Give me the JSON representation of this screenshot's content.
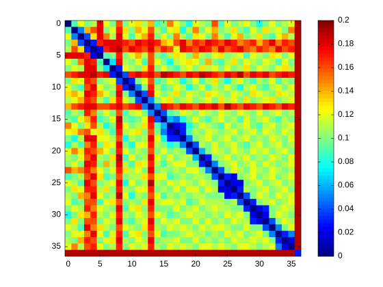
{
  "chart_data": {
    "type": "heatmap",
    "xlim": [
      -0.5,
      36.5
    ],
    "ylim": [
      36.5,
      -0.5
    ],
    "xticks": [
      0,
      5,
      10,
      15,
      20,
      25,
      30,
      35
    ],
    "yticks": [
      0,
      5,
      10,
      15,
      20,
      25,
      30,
      35
    ],
    "clim": [
      0,
      0.2
    ],
    "cticks": [
      0,
      0.02,
      0.04,
      0.06,
      0.08,
      0.1,
      0.12,
      0.14,
      0.16,
      0.18,
      0.2
    ],
    "colormap": "jet",
    "z": [
      [
        0,
        0.09,
        0.12,
        0.1,
        0.11,
        0.18,
        0.12,
        0.1,
        0.16,
        0.1,
        0.12,
        0.13,
        0.11,
        0.14,
        0.09,
        0.1,
        0.15,
        0.12,
        0.1,
        0.08,
        0.12,
        0.11,
        0.1,
        0.16,
        0.09,
        0.12,
        0.1,
        0.11,
        0.12,
        0.1,
        0.08,
        0.1,
        0.12,
        0.1,
        0.11,
        0.12,
        0.19
      ],
      [
        0.09,
        0,
        0.05,
        0.14,
        0.16,
        0.18,
        0.1,
        0.12,
        0.17,
        0.13,
        0.1,
        0.14,
        0.12,
        0.16,
        0.11,
        0.09,
        0.12,
        0.13,
        0.08,
        0.11,
        0.15,
        0.1,
        0.12,
        0.14,
        0.1,
        0.11,
        0.13,
        0.1,
        0.09,
        0.12,
        0.1,
        0.13,
        0.11,
        0.12,
        0.1,
        0.15,
        0.19
      ],
      [
        0.12,
        0.05,
        0,
        0.04,
        0.13,
        0.18,
        0.15,
        0.11,
        0.18,
        0.12,
        0.09,
        0.12,
        0.14,
        0.17,
        0.1,
        0.12,
        0.1,
        0.15,
        0.11,
        0.09,
        0.13,
        0.12,
        0.1,
        0.15,
        0.11,
        0.09,
        0.12,
        0.14,
        0.1,
        0.11,
        0.13,
        0.1,
        0.09,
        0.12,
        0.14,
        0.11,
        0.19
      ],
      [
        0.1,
        0.14,
        0.04,
        0,
        0.03,
        0.17,
        0.18,
        0.18,
        0.18,
        0.17,
        0.16,
        0.18,
        0.17,
        0.18,
        0.17,
        0.14,
        0.13,
        0.16,
        0.18,
        0.15,
        0.17,
        0.16,
        0.18,
        0.17,
        0.16,
        0.18,
        0.17,
        0.15,
        0.16,
        0.17,
        0.14,
        0.16,
        0.18,
        0.15,
        0.17,
        0.16,
        0.19
      ],
      [
        0.11,
        0.16,
        0.13,
        0.03,
        0,
        0.02,
        0.17,
        0.18,
        0.19,
        0.16,
        0.18,
        0.17,
        0.16,
        0.18,
        0.15,
        0.17,
        0.16,
        0.12,
        0.18,
        0.17,
        0.16,
        0.18,
        0.17,
        0.15,
        0.18,
        0.16,
        0.17,
        0.18,
        0.16,
        0.15,
        0.17,
        0.16,
        0.15,
        0.18,
        0.16,
        0.17,
        0.19
      ],
      [
        0.18,
        0.18,
        0.18,
        0.17,
        0.02,
        0,
        0.09,
        0.1,
        0.17,
        0.1,
        0.12,
        0.14,
        0.11,
        0.16,
        0.1,
        0.09,
        0.11,
        0.13,
        0.12,
        0.1,
        0.14,
        0.11,
        0.1,
        0.12,
        0.13,
        0.1,
        0.11,
        0.12,
        0.09,
        0.12,
        0.11,
        0.1,
        0.13,
        0.12,
        0.1,
        0.12,
        0.19
      ],
      [
        0.12,
        0.1,
        0.15,
        0.18,
        0.17,
        0.09,
        0,
        0.07,
        0.18,
        0.11,
        0.1,
        0.12,
        0.09,
        0.16,
        0.12,
        0.1,
        0.08,
        0.11,
        0.12,
        0.13,
        0.12,
        0.1,
        0.14,
        0.1,
        0.09,
        0.11,
        0.13,
        0.1,
        0.12,
        0.11,
        0.1,
        0.12,
        0.11,
        0.09,
        0.12,
        0.1,
        0.19
      ],
      [
        0.1,
        0.12,
        0.11,
        0.18,
        0.18,
        0.1,
        0.07,
        0,
        0.03,
        0.12,
        0.11,
        0.1,
        0.13,
        0.17,
        0.1,
        0.12,
        0.1,
        0.09,
        0.11,
        0.12,
        0.1,
        0.13,
        0.11,
        0.12,
        0.1,
        0.12,
        0.1,
        0.11,
        0.13,
        0.1,
        0.12,
        0.11,
        0.1,
        0.12,
        0.13,
        0.11,
        0.19
      ],
      [
        0.16,
        0.17,
        0.18,
        0.18,
        0.19,
        0.17,
        0.18,
        0.03,
        0,
        0.04,
        0.17,
        0.18,
        0.17,
        0.18,
        0.16,
        0.19,
        0.18,
        0.17,
        0.16,
        0.18,
        0.17,
        0.19,
        0.18,
        0.17,
        0.16,
        0.18,
        0.17,
        0.19,
        0.16,
        0.18,
        0.17,
        0.18,
        0.16,
        0.17,
        0.18,
        0.17,
        0.19
      ],
      [
        0.1,
        0.13,
        0.12,
        0.17,
        0.16,
        0.1,
        0.11,
        0.12,
        0.04,
        0,
        0.03,
        0.1,
        0.12,
        0.16,
        0.09,
        0.1,
        0.12,
        0.11,
        0.08,
        0.1,
        0.12,
        0.09,
        0.11,
        0.13,
        0.1,
        0.08,
        0.11,
        0.12,
        0.1,
        0.09,
        0.11,
        0.1,
        0.12,
        0.09,
        0.11,
        0.1,
        0.19
      ],
      [
        0.12,
        0.1,
        0.09,
        0.16,
        0.18,
        0.12,
        0.1,
        0.11,
        0.17,
        0.03,
        0,
        0.05,
        0.1,
        0.17,
        0.11,
        0.09,
        0.1,
        0.12,
        0.11,
        0.08,
        0.1,
        0.12,
        0.09,
        0.11,
        0.1,
        0.12,
        0.1,
        0.08,
        0.11,
        0.12,
        0.1,
        0.09,
        0.11,
        0.12,
        0.1,
        0.12,
        0.19
      ],
      [
        0.13,
        0.14,
        0.12,
        0.18,
        0.17,
        0.14,
        0.12,
        0.1,
        0.18,
        0.1,
        0.05,
        0,
        0.04,
        0.18,
        0.12,
        0.1,
        0.11,
        0.13,
        0.1,
        0.12,
        0.11,
        0.1,
        0.13,
        0.12,
        0.11,
        0.1,
        0.12,
        0.11,
        0.1,
        0.13,
        0.12,
        0.11,
        0.1,
        0.13,
        0.12,
        0.11,
        0.19
      ],
      [
        0.11,
        0.12,
        0.14,
        0.17,
        0.16,
        0.11,
        0.09,
        0.13,
        0.17,
        0.12,
        0.1,
        0.04,
        0,
        0.05,
        0.1,
        0.12,
        0.13,
        0.1,
        0.11,
        0.12,
        0.1,
        0.11,
        0.12,
        0.1,
        0.13,
        0.11,
        0.12,
        0.1,
        0.13,
        0.1,
        0.11,
        0.12,
        0.13,
        0.1,
        0.11,
        0.12,
        0.19
      ],
      [
        0.14,
        0.16,
        0.17,
        0.18,
        0.18,
        0.16,
        0.16,
        0.17,
        0.18,
        0.16,
        0.17,
        0.18,
        0.05,
        0,
        0.05,
        0.18,
        0.17,
        0.16,
        0.18,
        0.17,
        0.16,
        0.18,
        0.17,
        0.18,
        0.16,
        0.19,
        0.17,
        0.16,
        0.18,
        0.17,
        0.16,
        0.18,
        0.17,
        0.16,
        0.18,
        0.17,
        0.19
      ],
      [
        0.09,
        0.11,
        0.1,
        0.17,
        0.15,
        0.1,
        0.12,
        0.1,
        0.16,
        0.09,
        0.11,
        0.12,
        0.1,
        0.05,
        0,
        0.04,
        0.09,
        0.1,
        0.12,
        0.11,
        0.1,
        0.12,
        0.11,
        0.1,
        0.12,
        0.11,
        0.1,
        0.12,
        0.11,
        0.1,
        0.12,
        0.1,
        0.11,
        0.12,
        0.1,
        0.11,
        0.19
      ],
      [
        0.1,
        0.09,
        0.12,
        0.14,
        0.17,
        0.09,
        0.1,
        0.12,
        0.19,
        0.1,
        0.09,
        0.1,
        0.12,
        0.18,
        0.04,
        0,
        0.06,
        0.05,
        0.08,
        0.1,
        0.12,
        0.1,
        0.09,
        0.11,
        0.12,
        0.1,
        0.11,
        0.09,
        0.12,
        0.1,
        0.11,
        0.12,
        0.1,
        0.09,
        0.11,
        0.1,
        0.19
      ],
      [
        0.15,
        0.12,
        0.1,
        0.13,
        0.16,
        0.11,
        0.08,
        0.1,
        0.18,
        0.12,
        0.1,
        0.11,
        0.13,
        0.17,
        0.09,
        0.06,
        0,
        0.02,
        0.03,
        0.08,
        0.1,
        0.12,
        0.11,
        0.1,
        0.09,
        0.12,
        0.1,
        0.11,
        0.12,
        0.1,
        0.09,
        0.11,
        0.12,
        0.1,
        0.11,
        0.12,
        0.19
      ],
      [
        0.12,
        0.13,
        0.15,
        0.16,
        0.12,
        0.13,
        0.11,
        0.09,
        0.17,
        0.11,
        0.12,
        0.13,
        0.1,
        0.16,
        0.1,
        0.05,
        0.02,
        0,
        0.03,
        0.09,
        0.11,
        0.1,
        0.12,
        0.11,
        0.1,
        0.11,
        0.12,
        0.1,
        0.11,
        0.12,
        0.1,
        0.12,
        0.11,
        0.1,
        0.12,
        0.11,
        0.19
      ],
      [
        0.1,
        0.08,
        0.11,
        0.18,
        0.18,
        0.12,
        0.12,
        0.11,
        0.16,
        0.08,
        0.11,
        0.1,
        0.11,
        0.18,
        0.12,
        0.08,
        0.03,
        0.03,
        0,
        0.05,
        0.1,
        0.11,
        0.12,
        0.1,
        0.11,
        0.12,
        0.1,
        0.11,
        0.12,
        0.1,
        0.11,
        0.1,
        0.12,
        0.11,
        0.1,
        0.12,
        0.19
      ],
      [
        0.08,
        0.11,
        0.09,
        0.15,
        0.17,
        0.1,
        0.13,
        0.12,
        0.18,
        0.1,
        0.08,
        0.12,
        0.12,
        0.17,
        0.11,
        0.1,
        0.08,
        0.09,
        0.05,
        0,
        0.04,
        0.11,
        0.1,
        0.12,
        0.1,
        0.11,
        0.12,
        0.1,
        0.09,
        0.11,
        0.12,
        0.1,
        0.11,
        0.12,
        0.1,
        0.11,
        0.19
      ],
      [
        0.12,
        0.15,
        0.13,
        0.17,
        0.16,
        0.14,
        0.12,
        0.1,
        0.17,
        0.12,
        0.1,
        0.11,
        0.1,
        0.16,
        0.1,
        0.12,
        0.1,
        0.11,
        0.1,
        0.04,
        0,
        0.06,
        0.1,
        0.12,
        0.11,
        0.1,
        0.12,
        0.11,
        0.1,
        0.12,
        0.11,
        0.12,
        0.1,
        0.11,
        0.12,
        0.1,
        0.19
      ],
      [
        0.11,
        0.1,
        0.12,
        0.16,
        0.18,
        0.11,
        0.1,
        0.13,
        0.19,
        0.09,
        0.12,
        0.1,
        0.11,
        0.18,
        0.12,
        0.1,
        0.12,
        0.1,
        0.11,
        0.11,
        0.06,
        0,
        0.03,
        0.1,
        0.11,
        0.12,
        0.1,
        0.11,
        0.12,
        0.1,
        0.11,
        0.1,
        0.12,
        0.11,
        0.1,
        0.12,
        0.19
      ],
      [
        0.1,
        0.12,
        0.1,
        0.18,
        0.17,
        0.1,
        0.14,
        0.11,
        0.18,
        0.11,
        0.09,
        0.13,
        0.12,
        0.17,
        0.11,
        0.09,
        0.11,
        0.12,
        0.12,
        0.1,
        0.1,
        0.03,
        0,
        0.05,
        0.1,
        0.11,
        0.12,
        0.1,
        0.11,
        0.12,
        0.1,
        0.12,
        0.11,
        0.1,
        0.11,
        0.12,
        0.19
      ],
      [
        0.16,
        0.14,
        0.15,
        0.17,
        0.15,
        0.12,
        0.1,
        0.12,
        0.17,
        0.13,
        0.11,
        0.12,
        0.1,
        0.18,
        0.1,
        0.11,
        0.1,
        0.11,
        0.1,
        0.12,
        0.12,
        0.1,
        0.05,
        0,
        0.04,
        0.1,
        0.12,
        0.11,
        0.1,
        0.12,
        0.11,
        0.1,
        0.12,
        0.11,
        0.1,
        0.11,
        0.19
      ],
      [
        0.09,
        0.1,
        0.11,
        0.16,
        0.18,
        0.13,
        0.09,
        0.1,
        0.16,
        0.1,
        0.11,
        0.11,
        0.13,
        0.16,
        0.12,
        0.12,
        0.09,
        0.1,
        0.11,
        0.1,
        0.11,
        0.11,
        0.1,
        0.04,
        0,
        0.03,
        0.02,
        0.1,
        0.11,
        0.12,
        0.1,
        0.11,
        0.12,
        0.1,
        0.11,
        0.12,
        0.19
      ],
      [
        0.12,
        0.11,
        0.09,
        0.18,
        0.16,
        0.1,
        0.11,
        0.12,
        0.18,
        0.08,
        0.12,
        0.1,
        0.11,
        0.19,
        0.11,
        0.1,
        0.12,
        0.11,
        0.12,
        0.11,
        0.1,
        0.12,
        0.11,
        0.1,
        0.03,
        0,
        0.02,
        0.02,
        0.1,
        0.11,
        0.12,
        0.1,
        0.11,
        0.12,
        0.1,
        0.11,
        0.19
      ],
      [
        0.1,
        0.13,
        0.12,
        0.17,
        0.17,
        0.11,
        0.13,
        0.1,
        0.17,
        0.11,
        0.1,
        0.12,
        0.12,
        0.17,
        0.1,
        0.11,
        0.1,
        0.12,
        0.1,
        0.12,
        0.12,
        0.1,
        0.12,
        0.11,
        0.02,
        0.02,
        0,
        0.03,
        0.11,
        0.1,
        0.11,
        0.12,
        0.1,
        0.11,
        0.12,
        0.1,
        0.19
      ],
      [
        0.11,
        0.1,
        0.14,
        0.15,
        0.18,
        0.12,
        0.1,
        0.11,
        0.19,
        0.12,
        0.08,
        0.11,
        0.1,
        0.16,
        0.12,
        0.09,
        0.11,
        0.1,
        0.11,
        0.1,
        0.11,
        0.11,
        0.1,
        0.1,
        0.1,
        0.02,
        0.03,
        0,
        0.04,
        0.1,
        0.12,
        0.11,
        0.1,
        0.12,
        0.11,
        0.12,
        0.19
      ],
      [
        0.12,
        0.09,
        0.1,
        0.16,
        0.16,
        0.09,
        0.12,
        0.13,
        0.16,
        0.1,
        0.11,
        0.1,
        0.13,
        0.18,
        0.11,
        0.12,
        0.12,
        0.11,
        0.12,
        0.09,
        0.1,
        0.12,
        0.11,
        0.11,
        0.11,
        0.1,
        0.11,
        0.04,
        0,
        0.03,
        0.1,
        0.11,
        0.12,
        0.1,
        0.11,
        0.12,
        0.19
      ],
      [
        0.1,
        0.12,
        0.11,
        0.17,
        0.15,
        0.12,
        0.11,
        0.1,
        0.18,
        0.09,
        0.12,
        0.13,
        0.1,
        0.17,
        0.1,
        0.1,
        0.1,
        0.12,
        0.1,
        0.11,
        0.12,
        0.1,
        0.11,
        0.12,
        0.11,
        0.11,
        0.1,
        0.1,
        0.03,
        0,
        0.02,
        0.03,
        0.1,
        0.11,
        0.12,
        0.11,
        0.19
      ],
      [
        0.08,
        0.1,
        0.13,
        0.14,
        0.17,
        0.11,
        0.1,
        0.12,
        0.17,
        0.11,
        0.1,
        0.12,
        0.11,
        0.16,
        0.12,
        0.11,
        0.09,
        0.1,
        0.11,
        0.12,
        0.11,
        0.11,
        0.1,
        0.11,
        0.1,
        0.12,
        0.11,
        0.12,
        0.1,
        0.02,
        0,
        0.02,
        0.1,
        0.12,
        0.11,
        0.1,
        0.19
      ],
      [
        0.1,
        0.13,
        0.1,
        0.16,
        0.16,
        0.1,
        0.12,
        0.11,
        0.18,
        0.1,
        0.09,
        0.11,
        0.12,
        0.18,
        0.1,
        0.12,
        0.11,
        0.12,
        0.1,
        0.1,
        0.12,
        0.1,
        0.12,
        0.1,
        0.11,
        0.1,
        0.12,
        0.11,
        0.11,
        0.03,
        0.02,
        0,
        0.04,
        0.1,
        0.12,
        0.11,
        0.19
      ],
      [
        0.12,
        0.11,
        0.09,
        0.18,
        0.15,
        0.13,
        0.11,
        0.1,
        0.16,
        0.12,
        0.11,
        0.1,
        0.13,
        0.17,
        0.11,
        0.1,
        0.12,
        0.11,
        0.12,
        0.11,
        0.1,
        0.12,
        0.11,
        0.12,
        0.12,
        0.11,
        0.1,
        0.1,
        0.12,
        0.1,
        0.1,
        0.04,
        0,
        0.05,
        0.1,
        0.12,
        0.19
      ],
      [
        0.1,
        0.12,
        0.12,
        0.15,
        0.18,
        0.12,
        0.09,
        0.12,
        0.17,
        0.09,
        0.12,
        0.13,
        0.1,
        0.16,
        0.12,
        0.09,
        0.1,
        0.1,
        0.11,
        0.12,
        0.11,
        0.11,
        0.1,
        0.11,
        0.1,
        0.12,
        0.11,
        0.12,
        0.1,
        0.11,
        0.12,
        0.1,
        0.05,
        0,
        0.03,
        0.05,
        0.19
      ],
      [
        0.11,
        0.1,
        0.14,
        0.17,
        0.16,
        0.1,
        0.12,
        0.13,
        0.18,
        0.11,
        0.1,
        0.12,
        0.11,
        0.18,
        0.1,
        0.11,
        0.11,
        0.12,
        0.1,
        0.1,
        0.12,
        0.1,
        0.11,
        0.1,
        0.11,
        0.1,
        0.12,
        0.11,
        0.11,
        0.12,
        0.11,
        0.12,
        0.1,
        0.03,
        0,
        0.02,
        0.19
      ],
      [
        0.12,
        0.15,
        0.11,
        0.16,
        0.17,
        0.12,
        0.1,
        0.11,
        0.17,
        0.1,
        0.12,
        0.11,
        0.12,
        0.17,
        0.11,
        0.1,
        0.12,
        0.11,
        0.12,
        0.11,
        0.1,
        0.12,
        0.12,
        0.11,
        0.12,
        0.11,
        0.1,
        0.12,
        0.12,
        0.11,
        0.1,
        0.11,
        0.12,
        0.05,
        0.02,
        0,
        0.19
      ],
      [
        0.19,
        0.19,
        0.19,
        0.19,
        0.19,
        0.19,
        0.19,
        0.19,
        0.19,
        0.19,
        0.19,
        0.19,
        0.19,
        0.19,
        0.19,
        0.19,
        0.19,
        0.19,
        0.19,
        0.19,
        0.19,
        0.19,
        0.19,
        0.19,
        0.19,
        0.19,
        0.19,
        0.19,
        0.19,
        0.19,
        0.19,
        0.19,
        0.19,
        0.19,
        0.19,
        0.19,
        0.03
      ]
    ]
  }
}
